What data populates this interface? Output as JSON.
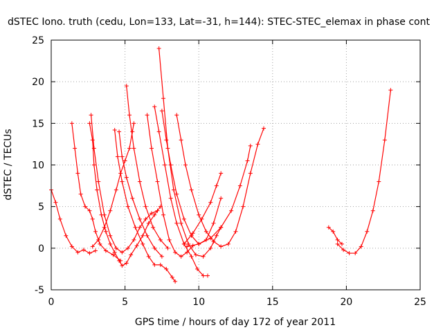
{
  "chart_data": {
    "type": "scatter",
    "title": "dSTEC Iono. truth (cedu, Lon=133, Lat=-31, h=144): STEC-STEC_elemax in phase cont",
    "xlabel": "GPS time / hours of day 172 of year 2011",
    "ylabel": "dSTEC  / TECUs",
    "xlim": [
      0,
      25
    ],
    "ylim": [
      -5,
      25
    ],
    "xticks": [
      0,
      5,
      10,
      15,
      20,
      25
    ],
    "yticks": [
      -5,
      0,
      5,
      10,
      15,
      20,
      25
    ],
    "grid": true,
    "marker": "+",
    "color": "#ff0000",
    "series": [
      {
        "points": [
          [
            0.0,
            7.0
          ],
          [
            0.3,
            5.5
          ],
          [
            0.6,
            3.5
          ],
          [
            1.0,
            1.5
          ],
          [
            1.4,
            0.2
          ],
          [
            1.8,
            -0.5
          ],
          [
            2.2,
            -0.2
          ],
          [
            2.6,
            -0.6
          ],
          [
            3.0,
            -0.3
          ]
        ]
      },
      {
        "points": [
          [
            1.4,
            15.0
          ],
          [
            1.6,
            12.0
          ],
          [
            1.8,
            9.0
          ],
          [
            2.0,
            6.5
          ],
          [
            2.3,
            5.0
          ],
          [
            2.6,
            4.5
          ],
          [
            2.8,
            3.5
          ],
          [
            3.0,
            2.0
          ],
          [
            3.3,
            0.5
          ],
          [
            3.7,
            -0.3
          ],
          [
            4.2,
            -0.8
          ],
          [
            4.7,
            -1.5
          ]
        ]
      },
      {
        "points": [
          [
            2.6,
            15.0
          ],
          [
            2.8,
            13.0
          ],
          [
            2.9,
            10.0
          ],
          [
            3.1,
            7.0
          ],
          [
            3.4,
            4.0
          ],
          [
            3.7,
            2.0
          ],
          [
            4.0,
            0.5
          ],
          [
            4.3,
            -0.5
          ],
          [
            4.6,
            -1.5
          ],
          [
            4.8,
            -2.1
          ],
          [
            5.1,
            -1.8
          ],
          [
            5.4,
            -0.8
          ],
          [
            5.8,
            0.3
          ],
          [
            6.2,
            1.5
          ],
          [
            6.6,
            3.0
          ],
          [
            7.0,
            4.0
          ],
          [
            7.4,
            5.0
          ]
        ]
      },
      {
        "points": [
          [
            2.7,
            16.0
          ],
          [
            2.9,
            12.0
          ],
          [
            3.2,
            8.0
          ],
          [
            3.6,
            4.0
          ],
          [
            4.0,
            1.5
          ],
          [
            4.4,
            0.0
          ],
          [
            4.8,
            -0.5
          ],
          [
            5.2,
            0.0
          ],
          [
            5.6,
            1.0
          ],
          [
            6.0,
            2.5
          ],
          [
            6.4,
            3.5
          ],
          [
            6.8,
            4.2
          ],
          [
            7.2,
            4.5
          ]
        ]
      },
      {
        "points": [
          [
            2.8,
            0.2
          ],
          [
            3.2,
            1.0
          ],
          [
            3.6,
            2.5
          ],
          [
            4.0,
            4.5
          ],
          [
            4.4,
            7.0
          ],
          [
            4.7,
            9.0
          ],
          [
            5.0,
            10.5
          ],
          [
            5.3,
            12.0
          ],
          [
            5.5,
            14.0
          ],
          [
            5.6,
            15.0
          ]
        ]
      },
      {
        "points": [
          [
            4.3,
            14.2
          ],
          [
            4.5,
            11.0
          ],
          [
            4.8,
            8.0
          ],
          [
            5.2,
            5.0
          ],
          [
            5.7,
            2.5
          ],
          [
            6.2,
            0.5
          ],
          [
            6.6,
            -1.0
          ],
          [
            7.0,
            -2.0
          ],
          [
            7.4,
            -2.0
          ],
          [
            7.8,
            -2.5
          ],
          [
            8.2,
            -3.5
          ],
          [
            8.4,
            -4.0
          ]
        ]
      },
      {
        "points": [
          [
            4.6,
            14.0
          ],
          [
            4.8,
            11.0
          ],
          [
            5.1,
            8.5
          ],
          [
            5.5,
            6.0
          ],
          [
            6.0,
            3.5
          ],
          [
            6.5,
            1.5
          ],
          [
            7.0,
            0.0
          ],
          [
            7.5,
            -1.0
          ]
        ]
      },
      {
        "points": [
          [
            5.1,
            19.5
          ],
          [
            5.3,
            16.0
          ],
          [
            5.6,
            12.0
          ],
          [
            6.0,
            8.0
          ],
          [
            6.4,
            5.0
          ],
          [
            6.9,
            2.5
          ],
          [
            7.4,
            1.0
          ],
          [
            7.9,
            0.0
          ]
        ]
      },
      {
        "points": [
          [
            7.3,
            24.0
          ],
          [
            7.6,
            18.0
          ],
          [
            7.9,
            12.0
          ],
          [
            8.3,
            7.0
          ],
          [
            8.8,
            3.0
          ],
          [
            9.3,
            0.5
          ],
          [
            9.8,
            -0.8
          ],
          [
            10.3,
            -1.0
          ],
          [
            10.8,
            0.0
          ],
          [
            11.2,
            1.5
          ],
          [
            11.5,
            2.5
          ]
        ]
      },
      {
        "points": [
          [
            6.5,
            16.0
          ],
          [
            6.8,
            12.0
          ],
          [
            7.2,
            8.0
          ],
          [
            7.6,
            4.0
          ],
          [
            8.0,
            1.0
          ],
          [
            8.4,
            -0.5
          ],
          [
            8.8,
            -1.0
          ],
          [
            9.2,
            -0.5
          ],
          [
            9.6,
            0.3
          ]
        ]
      },
      {
        "points": [
          [
            7.0,
            17.0
          ],
          [
            7.3,
            14.0
          ],
          [
            7.7,
            10.0
          ],
          [
            8.1,
            6.0
          ],
          [
            8.5,
            3.0
          ],
          [
            9.0,
            0.5
          ],
          [
            9.5,
            -1.0
          ],
          [
            9.9,
            -2.5
          ],
          [
            10.3,
            -3.3
          ],
          [
            10.6,
            -3.3
          ]
        ]
      },
      {
        "points": [
          [
            7.5,
            16.5
          ],
          [
            7.8,
            13.0
          ],
          [
            8.1,
            10.0
          ],
          [
            8.5,
            6.5
          ],
          [
            9.0,
            3.5
          ],
          [
            9.5,
            1.5
          ],
          [
            10.0,
            0.5
          ],
          [
            10.5,
            1.0
          ],
          [
            11.0,
            3.0
          ],
          [
            11.5,
            6.0
          ]
        ]
      },
      {
        "points": [
          [
            8.5,
            16.0
          ],
          [
            8.8,
            13.0
          ],
          [
            9.1,
            10.0
          ],
          [
            9.5,
            7.0
          ],
          [
            10.0,
            4.0
          ],
          [
            10.5,
            2.0
          ],
          [
            11.0,
            0.8
          ],
          [
            11.5,
            0.2
          ],
          [
            12.0,
            0.5
          ],
          [
            12.5,
            2.0
          ],
          [
            13.0,
            5.0
          ],
          [
            13.5,
            9.0
          ],
          [
            14.0,
            12.5
          ],
          [
            14.4,
            14.4
          ]
        ]
      },
      {
        "points": [
          [
            9.0,
            0.5
          ],
          [
            9.6,
            1.8
          ],
          [
            10.2,
            3.5
          ],
          [
            10.8,
            5.5
          ],
          [
            11.2,
            7.5
          ],
          [
            11.5,
            9.0
          ]
        ]
      },
      {
        "points": [
          [
            9.2,
            0.2
          ],
          [
            10.0,
            0.5
          ],
          [
            10.8,
            1.2
          ],
          [
            11.5,
            2.5
          ],
          [
            12.2,
            4.5
          ],
          [
            12.8,
            7.5
          ],
          [
            13.3,
            10.5
          ],
          [
            13.5,
            12.3
          ]
        ]
      },
      {
        "points": [
          [
            18.8,
            2.5
          ],
          [
            19.1,
            2.0
          ],
          [
            19.4,
            1.0
          ],
          [
            19.7,
            0.5
          ]
        ]
      },
      {
        "points": [
          [
            19.4,
            0.5
          ],
          [
            19.8,
            -0.2
          ],
          [
            20.2,
            -0.6
          ],
          [
            20.6,
            -0.6
          ],
          [
            21.0,
            0.2
          ],
          [
            21.4,
            2.0
          ],
          [
            21.8,
            4.5
          ],
          [
            22.2,
            8.0
          ],
          [
            22.6,
            13.0
          ],
          [
            23.0,
            19.0
          ]
        ]
      }
    ]
  }
}
